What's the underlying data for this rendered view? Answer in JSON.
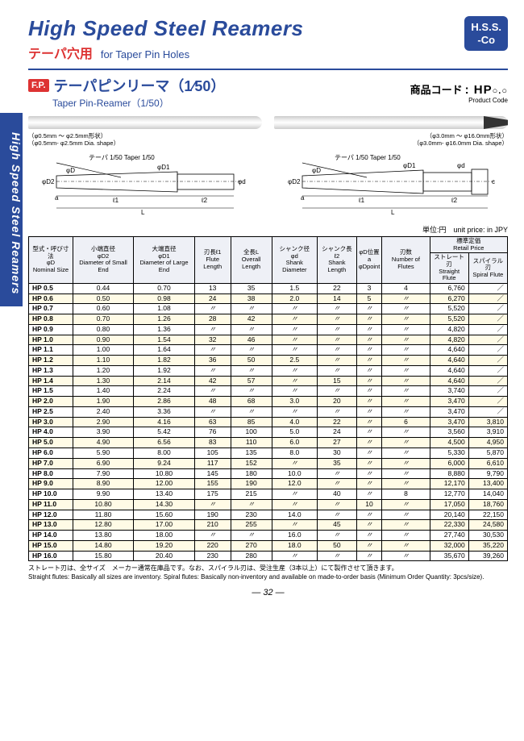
{
  "sideTab": "High Speed Steel Reamers",
  "header": {
    "title": "High Speed Steel Reamers",
    "subJp": "テーパ穴用",
    "subEn": "for Taper Pin Holes",
    "badgeLine1": "H.S.S.",
    "badgeLine2": "-Co"
  },
  "product": {
    "logo": "F.P.",
    "jp": "テーパピンリーマ（1⁄50）",
    "en": "Taper Pin-Reamer（1/50）",
    "codeLabelJp": "商品コード",
    "codeLabelEn": "Product Code",
    "codePrefix": ": HP",
    "codeSuffix": "○.○"
  },
  "diagram": {
    "leftCap1": "（φ0.5mm ～ φ2.5mm形状）",
    "leftCap2": "（φ0.5mm- φ2.5mm Dia. shape）",
    "rightCap1": "（φ3.0mm ～ φ16.0mm形状）",
    "rightCap2": "（φ3.0mm- φ16.0mm Dia. shape）",
    "taperLabel": "テーパ 1/50 Taper 1/50"
  },
  "unitNote": "単位:円　unit price: in JPY",
  "columns": [
    {
      "jp": "型式・呼び寸法",
      "sym": "φD",
      "en": "Nominal Size"
    },
    {
      "jp": "小端直径",
      "sym": "φD2",
      "en": "Diameter of Small End"
    },
    {
      "jp": "大端直径",
      "sym": "φD1",
      "en": "Diameter of Large End"
    },
    {
      "jp": "刃長ℓ1",
      "sym": "",
      "en": "Flute Length"
    },
    {
      "jp": "全長L",
      "sym": "",
      "en": "Overall Length"
    },
    {
      "jp": "シャンク径",
      "sym": "φd",
      "en": "Shank Diameter"
    },
    {
      "jp": "シャンク長",
      "sym": "ℓ2",
      "en": "Shank Length"
    },
    {
      "jp": "φD位置",
      "sym": "a",
      "en": "φDpoint"
    },
    {
      "jp": "刃数",
      "sym": "",
      "en": "Number of Flutes"
    }
  ],
  "priceHeader": {
    "jp": "標準定価",
    "en": "Retail Price"
  },
  "priceSub": [
    {
      "jp": "ストレート刃",
      "en": "Straight Flute"
    },
    {
      "jp": "スパイラル刃",
      "en": "Spiral Flute"
    }
  ],
  "rows": [
    [
      "HP 0.5",
      "0.44",
      "0.70",
      "13",
      "35",
      "1.5",
      "22",
      "3",
      "4",
      "6,760",
      "／"
    ],
    [
      "HP 0.6",
      "0.50",
      "0.98",
      "24",
      "38",
      "2.0",
      "14",
      "5",
      "〃",
      "6,270",
      "／"
    ],
    [
      "HP 0.7",
      "0.60",
      "1.08",
      "〃",
      "〃",
      "〃",
      "〃",
      "〃",
      "〃",
      "5,520",
      "／"
    ],
    [
      "HP 0.8",
      "0.70",
      "1.26",
      "28",
      "42",
      "〃",
      "〃",
      "〃",
      "〃",
      "5,520",
      "／"
    ],
    [
      "HP 0.9",
      "0.80",
      "1.36",
      "〃",
      "〃",
      "〃",
      "〃",
      "〃",
      "〃",
      "4,820",
      "／"
    ],
    [
      "HP 1.0",
      "0.90",
      "1.54",
      "32",
      "46",
      "〃",
      "〃",
      "〃",
      "〃",
      "4,820",
      "／"
    ],
    [
      "HP 1.1",
      "1.00",
      "1.64",
      "〃",
      "〃",
      "〃",
      "〃",
      "〃",
      "〃",
      "4,640",
      "／"
    ],
    [
      "HP 1.2",
      "1.10",
      "1.82",
      "36",
      "50",
      "2.5",
      "〃",
      "〃",
      "〃",
      "4,640",
      "／"
    ],
    [
      "HP 1.3",
      "1.20",
      "1.92",
      "〃",
      "〃",
      "〃",
      "〃",
      "〃",
      "〃",
      "4,640",
      "／"
    ],
    [
      "HP 1.4",
      "1.30",
      "2.14",
      "42",
      "57",
      "〃",
      "15",
      "〃",
      "〃",
      "4,640",
      "／"
    ],
    [
      "HP 1.5",
      "1.40",
      "2.24",
      "〃",
      "〃",
      "〃",
      "〃",
      "〃",
      "〃",
      "3,740",
      "／"
    ],
    [
      "HP 2.0",
      "1.90",
      "2.86",
      "48",
      "68",
      "3.0",
      "20",
      "〃",
      "〃",
      "3,470",
      "／"
    ],
    [
      "HP 2.5",
      "2.40",
      "3.36",
      "〃",
      "〃",
      "〃",
      "〃",
      "〃",
      "〃",
      "3,470",
      "／"
    ],
    [
      "HP 3.0",
      "2.90",
      "4.16",
      "63",
      "85",
      "4.0",
      "22",
      "〃",
      "6",
      "3,470",
      "3,810"
    ],
    [
      "HP 4.0",
      "3.90",
      "5.42",
      "76",
      "100",
      "5.0",
      "24",
      "〃",
      "〃",
      "3,560",
      "3,910"
    ],
    [
      "HP 5.0",
      "4.90",
      "6.56",
      "83",
      "110",
      "6.0",
      "27",
      "〃",
      "〃",
      "4,500",
      "4,950"
    ],
    [
      "HP 6.0",
      "5.90",
      "8.00",
      "105",
      "135",
      "8.0",
      "30",
      "〃",
      "〃",
      "5,330",
      "5,870"
    ],
    [
      "HP 7.0",
      "6.90",
      "9.24",
      "117",
      "152",
      "〃",
      "35",
      "〃",
      "〃",
      "6,000",
      "6,610"
    ],
    [
      "HP 8.0",
      "7.90",
      "10.80",
      "145",
      "180",
      "10.0",
      "〃",
      "〃",
      "〃",
      "8,880",
      "9,790"
    ],
    [
      "HP 9.0",
      "8.90",
      "12.00",
      "155",
      "190",
      "12.0",
      "〃",
      "〃",
      "〃",
      "12,170",
      "13,400"
    ],
    [
      "HP 10.0",
      "9.90",
      "13.40",
      "175",
      "215",
      "〃",
      "40",
      "〃",
      "8",
      "12,770",
      "14,040"
    ],
    [
      "HP 11.0",
      "10.80",
      "14.30",
      "〃",
      "〃",
      "〃",
      "〃",
      "10",
      "〃",
      "17,050",
      "18,760"
    ],
    [
      "HP 12.0",
      "11.80",
      "15.60",
      "190",
      "230",
      "14.0",
      "〃",
      "〃",
      "〃",
      "20,140",
      "22,150"
    ],
    [
      "HP 13.0",
      "12.80",
      "17.00",
      "210",
      "255",
      "〃",
      "45",
      "〃",
      "〃",
      "22,330",
      "24,580"
    ],
    [
      "HP 14.0",
      "13.80",
      "18.00",
      "〃",
      "〃",
      "16.0",
      "〃",
      "〃",
      "〃",
      "27,740",
      "30,530"
    ],
    [
      "HP 15.0",
      "14.80",
      "19.20",
      "220",
      "270",
      "18.0",
      "50",
      "〃",
      "〃",
      "32,000",
      "35,220"
    ],
    [
      "HP 16.0",
      "15.80",
      "20.40",
      "230",
      "280",
      "〃",
      "〃",
      "〃",
      "〃",
      "35,670",
      "39,260"
    ]
  ],
  "footnote": {
    "jp": "ストレート刃は、全サイズ　メーカー通常在庫品です。なお、スパイラル刃は、受注生産（3本以上）にて製作させて頂きます。",
    "en": "Straight flutes: Basically all sizes are inventory. Spiral flutes: Basically non-inventory and available on made-to-order basis (Minimum Order Quantity: 3pcs/size)."
  },
  "pageNumber": "— 32 —"
}
